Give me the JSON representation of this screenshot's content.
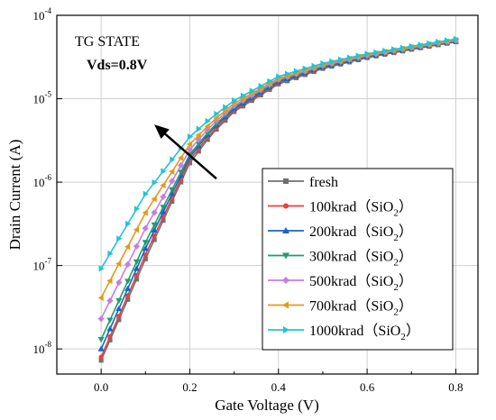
{
  "chart_data": {
    "type": "line",
    "xlabel": "Gate Voltage (V)",
    "ylabel": "Drain Current (A)",
    "xlim": [
      -0.1,
      0.85
    ],
    "ylim": [
      5e-09,
      0.0001
    ],
    "yscale": "log",
    "x_ticks": [
      0.0,
      0.2,
      0.4,
      0.6,
      0.8
    ],
    "x_tick_labels": [
      "0.0",
      "0.2",
      "0.4",
      "0.6",
      "0.8"
    ],
    "y_ticks": [
      1e-08,
      1e-07,
      1e-06,
      1e-05,
      0.0001
    ],
    "y_tick_labels": [
      {
        "base": "10",
        "exp": "-8"
      },
      {
        "base": "10",
        "exp": "-7"
      },
      {
        "base": "10",
        "exp": "-6"
      },
      {
        "base": "10",
        "exp": "-5"
      },
      {
        "base": "10",
        "exp": "-4"
      }
    ],
    "grid": true,
    "legend_position": "bottom-right",
    "annotations": [
      {
        "text": "TG STATE",
        "bold": false
      },
      {
        "text": "Vds=0.8V",
        "bold": true
      }
    ],
    "arrow": {
      "from": [
        0.26,
        1.1e-06
      ],
      "to": [
        0.12,
        4.9e-06
      ],
      "meaning": "increasing dose shifts curve left"
    },
    "series": [
      {
        "name": "fresh",
        "color": "#707070",
        "marker": "square",
        "anchors": [
          [
            0,
            7.3e-09
          ],
          [
            0.1,
            1.2e-07
          ],
          [
            0.2,
            1.7e-06
          ],
          [
            0.25,
            3.8e-06
          ],
          [
            0.3,
            7e-06
          ],
          [
            0.4,
            1.5e-05
          ],
          [
            0.5,
            2.3e-05
          ],
          [
            0.6,
            3.1e-05
          ],
          [
            0.7,
            3.9e-05
          ],
          [
            0.8,
            4.8e-05
          ]
        ]
      },
      {
        "name": "100krad（SiO",
        "sub": "2",
        "suffix": "）",
        "color": "#e8413c",
        "marker": "circle",
        "anchors": [
          [
            0,
            8e-09
          ],
          [
            0.1,
            1.35e-07
          ],
          [
            0.2,
            1.85e-06
          ],
          [
            0.25,
            4e-06
          ],
          [
            0.3,
            7.3e-06
          ],
          [
            0.4,
            1.55e-05
          ],
          [
            0.5,
            2.35e-05
          ],
          [
            0.6,
            3.15e-05
          ],
          [
            0.7,
            3.95e-05
          ],
          [
            0.8,
            4.85e-05
          ]
        ]
      },
      {
        "name": "200krad（SiO",
        "sub": "2",
        "suffix": "）",
        "color": "#1565c8",
        "marker": "triangle-up",
        "anchors": [
          [
            0,
            1e-08
          ],
          [
            0.1,
            1.6e-07
          ],
          [
            0.2,
            2e-06
          ],
          [
            0.25,
            4.3e-06
          ],
          [
            0.3,
            7.6e-06
          ],
          [
            0.4,
            1.6e-05
          ],
          [
            0.5,
            2.4e-05
          ],
          [
            0.6,
            3.2e-05
          ],
          [
            0.7,
            4e-05
          ],
          [
            0.8,
            4.9e-05
          ]
        ]
      },
      {
        "name": "300krad（SiO",
        "sub": "2",
        "suffix": "）",
        "color": "#1e9e6a",
        "marker": "triangle-down",
        "anchors": [
          [
            0,
            1.3e-08
          ],
          [
            0.1,
            1.9e-07
          ],
          [
            0.2,
            2.15e-06
          ],
          [
            0.25,
            4.5e-06
          ],
          [
            0.3,
            7.9e-06
          ],
          [
            0.4,
            1.65e-05
          ],
          [
            0.5,
            2.45e-05
          ],
          [
            0.6,
            3.25e-05
          ],
          [
            0.7,
            4.05e-05
          ],
          [
            0.8,
            4.95e-05
          ]
        ]
      },
      {
        "name": "500krad（SiO",
        "sub": "2",
        "suffix": "）",
        "color": "#c77de0",
        "marker": "diamond",
        "anchors": [
          [
            0,
            2.3e-08
          ],
          [
            0.1,
            2.8e-07
          ],
          [
            0.2,
            2.45e-06
          ],
          [
            0.25,
            4.9e-06
          ],
          [
            0.3,
            8.3e-06
          ],
          [
            0.4,
            1.7e-05
          ],
          [
            0.5,
            2.5e-05
          ],
          [
            0.6,
            3.3e-05
          ],
          [
            0.7,
            4.1e-05
          ],
          [
            0.8,
            5e-05
          ]
        ]
      },
      {
        "name": "700krad（SiO",
        "sub": "2",
        "suffix": "）",
        "color": "#e39a1b",
        "marker": "triangle-left",
        "anchors": [
          [
            0,
            4.1e-08
          ],
          [
            0.1,
            4.3e-07
          ],
          [
            0.2,
            2.85e-06
          ],
          [
            0.25,
            5.3e-06
          ],
          [
            0.3,
            8.8e-06
          ],
          [
            0.4,
            1.75e-05
          ],
          [
            0.5,
            2.55e-05
          ],
          [
            0.6,
            3.35e-05
          ],
          [
            0.7,
            4.15e-05
          ],
          [
            0.8,
            5.05e-05
          ]
        ]
      },
      {
        "name": "1000krad（SiO",
        "sub": "2",
        "suffix": "）",
        "color": "#21c4d4",
        "marker": "triangle-right",
        "anchors": [
          [
            0,
            9.2e-08
          ],
          [
            0.1,
            7.2e-07
          ],
          [
            0.2,
            3.5e-06
          ],
          [
            0.25,
            6e-06
          ],
          [
            0.3,
            9.5e-06
          ],
          [
            0.4,
            1.85e-05
          ],
          [
            0.5,
            2.65e-05
          ],
          [
            0.6,
            3.45e-05
          ],
          [
            0.7,
            4.25e-05
          ],
          [
            0.8,
            5.2e-05
          ]
        ]
      }
    ]
  }
}
